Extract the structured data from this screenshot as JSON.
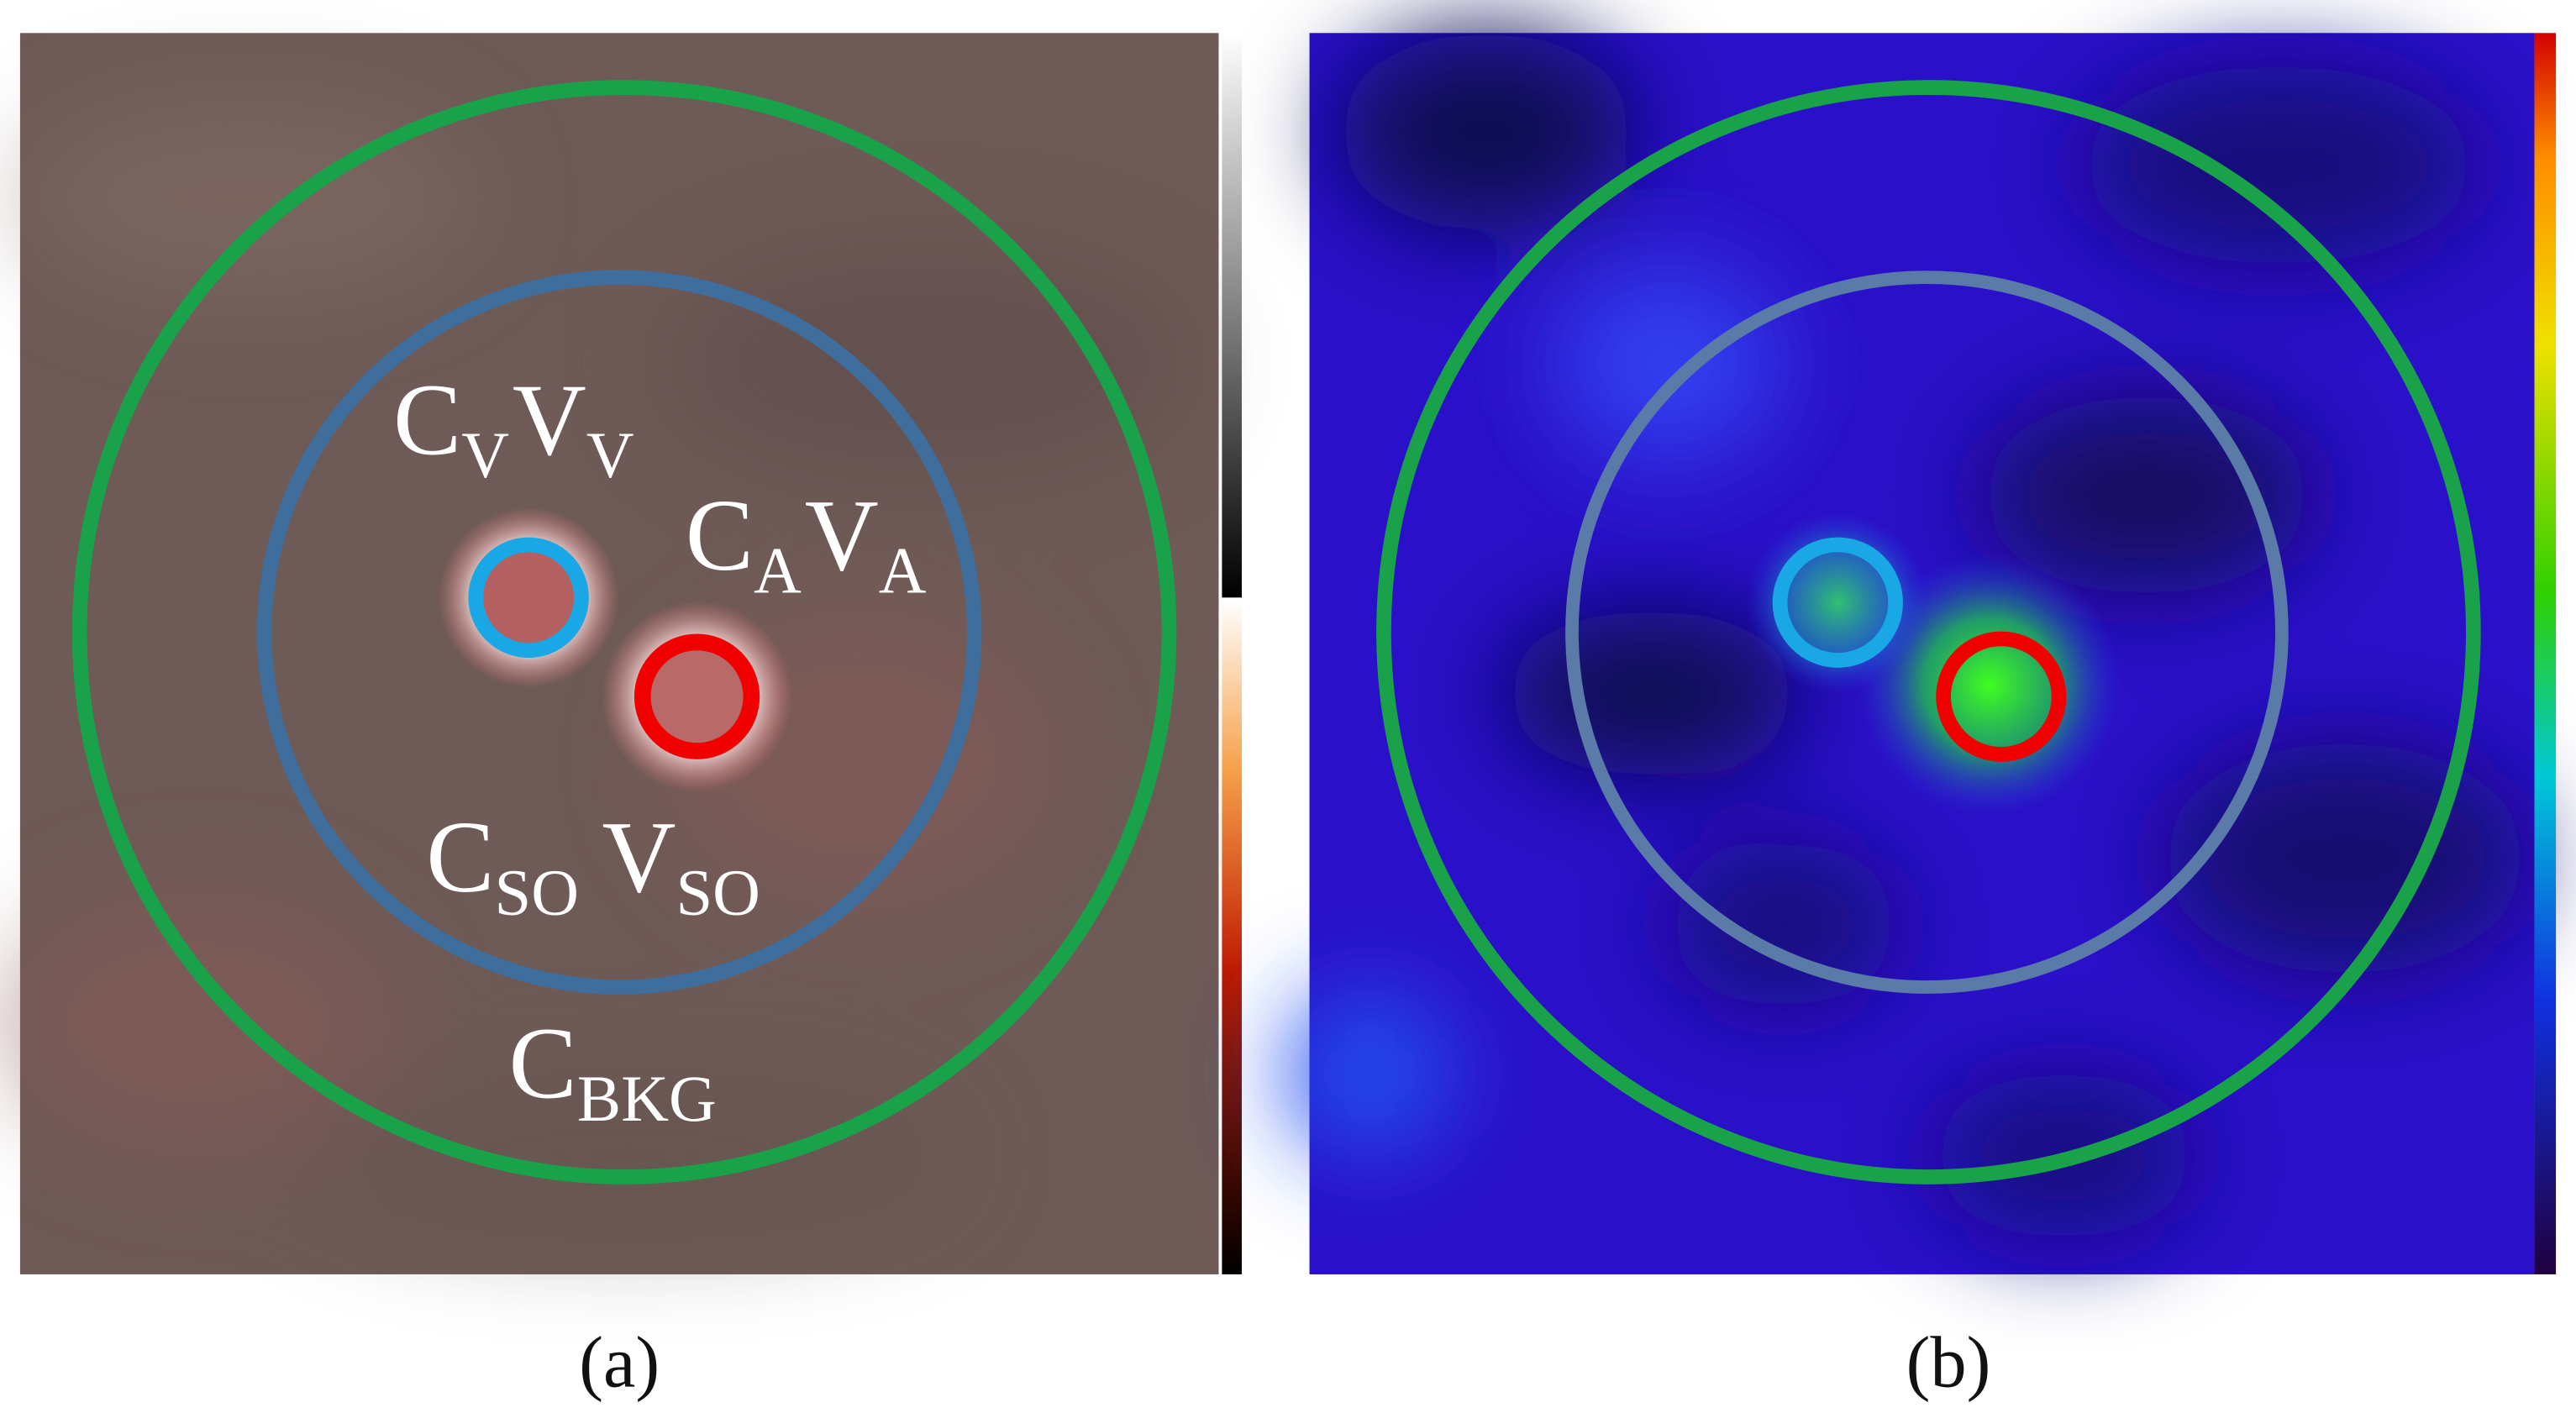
{
  "panels": [
    {
      "caption": "(a)",
      "annotations": [
        {
          "segments": [
            {
              "text": "C",
              "sub": "V"
            },
            {
              "text": "V",
              "sub": "V"
            }
          ]
        },
        {
          "segments": [
            {
              "text": "C",
              "sub": "A"
            },
            {
              "text": "V",
              "sub": "A"
            }
          ]
        },
        {
          "segments": [
            {
              "text": "C",
              "sub": "SO"
            },
            {
              "text": "V",
              "sub": "SO"
            }
          ]
        },
        {
          "segments": [
            {
              "text": "C",
              "sub": "BKG"
            }
          ]
        }
      ]
    },
    {
      "caption": "(b)",
      "annotations": []
    }
  ]
}
